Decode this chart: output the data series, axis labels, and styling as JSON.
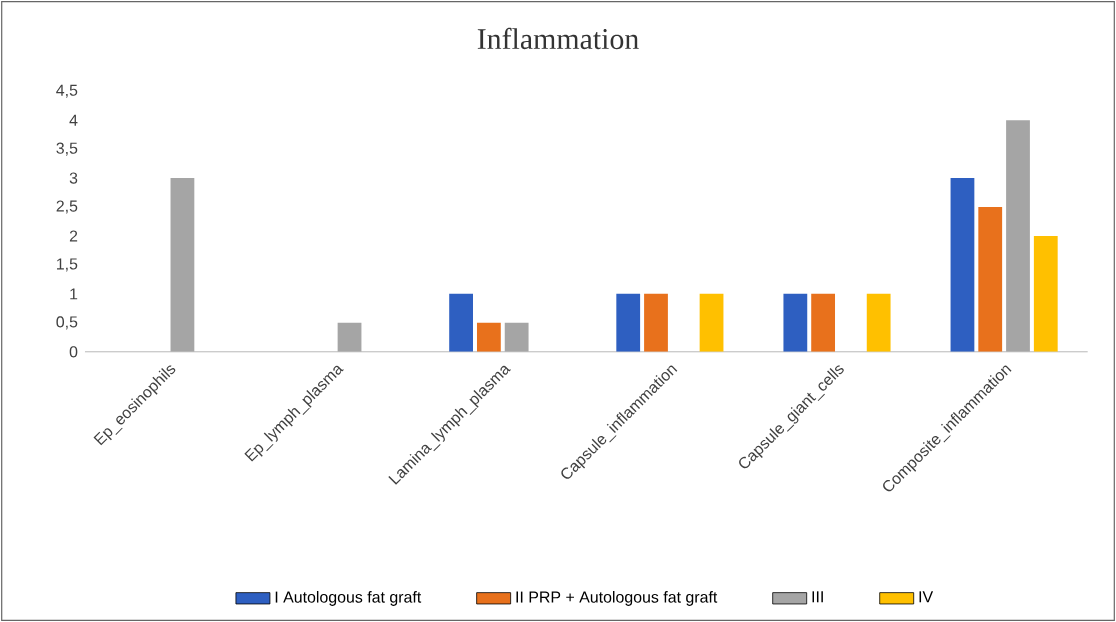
{
  "chart_data": {
    "type": "bar",
    "title": "Inflammation",
    "categories": [
      "Ep_eosinophils",
      "Ep_lymph_plasma",
      "Lamina_lymph_plasma",
      "Capsule_inflammation",
      "Capsule_giant_cells",
      "Composite_inflammation"
    ],
    "series": [
      {
        "name": "I Autologous fat graft",
        "color": "#2e5fc1",
        "values": [
          0,
          0,
          1,
          1,
          1,
          3
        ]
      },
      {
        "name": "II PRP + Autologous fat graft",
        "color": "#e8711c",
        "values": [
          0,
          0,
          0.5,
          1,
          1,
          2.5
        ]
      },
      {
        "name": "III",
        "color": "#a5a5a5",
        "values": [
          3,
          0.5,
          0.5,
          0,
          0,
          4
        ]
      },
      {
        "name": "IV",
        "color": "#ffc000",
        "values": [
          0,
          0,
          0,
          1,
          1,
          2
        ]
      }
    ],
    "ylim": [
      0,
      4.5
    ],
    "yticks": [
      0,
      {
        "value": 0.5,
        "label": "0,5"
      },
      1,
      {
        "value": 1.5,
        "label": "1,5"
      },
      2,
      {
        "value": 2.5,
        "label": "2,5"
      },
      3,
      {
        "value": 3.5,
        "label": "3,5"
      },
      4,
      {
        "value": 4.5,
        "label": "4,5"
      }
    ],
    "legend": "bottom"
  }
}
